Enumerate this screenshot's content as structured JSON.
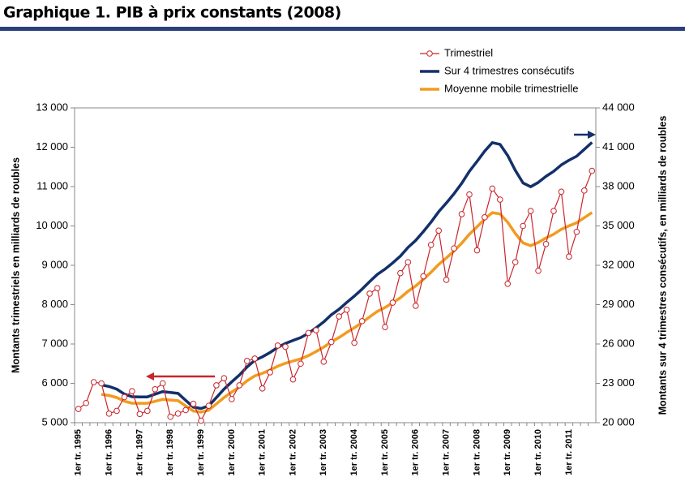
{
  "chart_data": {
    "type": "line",
    "title": "Graphique 1. PIB à prix constants (2008)",
    "ylabel": "Montants trimestriels en milliards de roubles",
    "y2label": "Montants sur 4 trimestres consécutifs, en milliards de roubles",
    "categories": [
      "1er tr. 1995",
      null,
      null,
      null,
      "1er tr. 1996",
      null,
      null,
      null,
      "1er tr. 1997",
      null,
      null,
      null,
      "1er tr. 1998",
      null,
      null,
      null,
      "1er tr. 1999",
      null,
      null,
      null,
      "1er tr. 2000",
      null,
      null,
      null,
      "1er tr. 2001",
      null,
      null,
      null,
      "1er tr. 2002",
      null,
      null,
      null,
      "1er tr. 2003",
      null,
      null,
      null,
      "1er tr. 2004",
      null,
      null,
      null,
      "1er tr. 2005",
      null,
      null,
      null,
      "1er tr. 2006",
      null,
      null,
      null,
      "1er tr. 2007",
      null,
      null,
      null,
      "1er tr. 2008",
      null,
      null,
      null,
      "1er tr. 2009",
      null,
      null,
      null,
      "1er tr. 2010",
      null,
      null,
      null,
      "1er tr. 2011",
      null,
      null,
      null
    ],
    "series": [
      {
        "name": "Trimestriel",
        "color": "#c8262c",
        "markers": true,
        "values": [
          5350,
          5500,
          6030,
          6000,
          5230,
          5300,
          5650,
          5800,
          5220,
          5300,
          5850,
          6000,
          5150,
          5230,
          5320,
          5480,
          5050,
          5430,
          5950,
          6130,
          5600,
          5950,
          6570,
          6630,
          5870,
          6280,
          6960,
          6930,
          6100,
          6500,
          7280,
          7350,
          6550,
          7050,
          7700,
          7870,
          7030,
          7580,
          8280,
          8420,
          7430,
          8050,
          8800,
          9080,
          7970,
          8720,
          9520,
          9880,
          8630,
          9430,
          10300,
          10800,
          9380,
          10220,
          10950,
          10670,
          8530,
          9080,
          10000,
          10380,
          8860,
          9540,
          10380,
          10870,
          9220,
          9850,
          10900,
          11400
        ]
      },
      {
        "name": "Sur 4 trimestres consécutifs",
        "color": "#13306a",
        "axis": "y2",
        "values": [
          null,
          null,
          null,
          22880,
          22760,
          22560,
          22180,
          21980,
          21970,
          21970,
          22170,
          22370,
          22300,
          22230,
          21700,
          21180,
          21080,
          21280,
          21910,
          22560,
          23110,
          23630,
          24250,
          24750,
          25020,
          25350,
          25740,
          26040,
          26270,
          26490,
          26810,
          27230,
          27680,
          28230,
          28650,
          29170,
          29650,
          30180,
          30760,
          31310,
          31710,
          32180,
          32700,
          33360,
          33900,
          34570,
          35290,
          36090,
          36750,
          37460,
          38240,
          39160,
          39910,
          40700,
          41350,
          41220,
          40370,
          39230,
          38280,
          37990,
          38320,
          38780,
          39160,
          39650,
          40010,
          40320,
          40840,
          41370
        ]
      },
      {
        "name": "Moyenne mobile trimestrielle",
        "color": "#f29b1f",
        "values": [
          null,
          null,
          null,
          5720,
          5690,
          5640,
          5545,
          5495,
          5493,
          5493,
          5543,
          5593,
          5575,
          5558,
          5425,
          5295,
          5270,
          5320,
          5478,
          5640,
          5778,
          5908,
          6063,
          6188,
          6255,
          6338,
          6435,
          6510,
          6568,
          6623,
          6703,
          6808,
          6920,
          7058,
          7163,
          7293,
          7413,
          7545,
          7690,
          7828,
          7928,
          8045,
          8175,
          8340,
          8475,
          8643,
          8823,
          9023,
          9188,
          9365,
          9560,
          9790,
          9978,
          10175,
          10338,
          10305,
          10093,
          9808,
          9570,
          9498,
          9580,
          9695,
          9790,
          9913,
          10003,
          10080,
          10210,
          10343
        ]
      }
    ],
    "ylim": [
      5000,
      13000
    ],
    "yticks": [
      {
        "value": 5000,
        "label": "5 000"
      },
      {
        "value": 6000,
        "label": "6 000"
      },
      {
        "value": 7000,
        "label": "7 000"
      },
      {
        "value": 8000,
        "label": "8 000"
      },
      {
        "value": 9000,
        "label": "9 000"
      },
      {
        "value": 10000,
        "label": "10 000"
      },
      {
        "value": 11000,
        "label": "11 000"
      },
      {
        "value": 12000,
        "label": "12 000"
      },
      {
        "value": 13000,
        "label": "13 000"
      }
    ],
    "y2lim": [
      20000,
      44000
    ],
    "y2ticks": [
      {
        "value": 20000,
        "label": "20 000"
      },
      {
        "value": 23000,
        "label": "23 000"
      },
      {
        "value": 26000,
        "label": "26 000"
      },
      {
        "value": 29000,
        "label": "29 000"
      },
      {
        "value": 32000,
        "label": "32 000"
      },
      {
        "value": 35000,
        "label": "35 000"
      },
      {
        "value": 38000,
        "label": "38 000"
      },
      {
        "value": 41000,
        "label": "41 000"
      },
      {
        "value": 44000,
        "label": "44 000"
      }
    ],
    "grid": false,
    "legend": "top-right"
  }
}
